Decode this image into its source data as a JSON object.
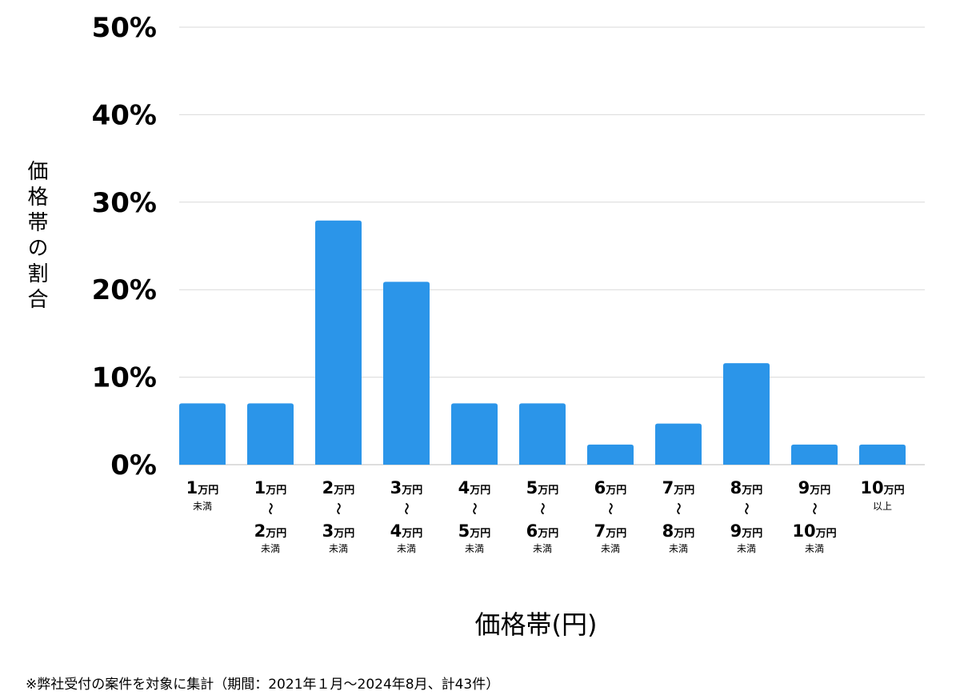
{
  "chart_data": {
    "type": "bar",
    "xlabel": "価格帯(円)",
    "ylabel": "価格帯の割合",
    "ylim": [
      0,
      50
    ],
    "yticks": [
      "0%",
      "10%",
      "20%",
      "30%",
      "40%",
      "50%"
    ],
    "grid": true,
    "bar_color": "#2b95e9",
    "categories": [
      {
        "top": "1",
        "top_unit": "万円",
        "note": "未満"
      },
      {
        "top": "1",
        "top_unit": "万円",
        "wave": "〜",
        "bottom": "2",
        "bottom_unit": "万円",
        "note": "未満"
      },
      {
        "top": "2",
        "top_unit": "万円",
        "wave": "〜",
        "bottom": "3",
        "bottom_unit": "万円",
        "note": "未満"
      },
      {
        "top": "3",
        "top_unit": "万円",
        "wave": "〜",
        "bottom": "4",
        "bottom_unit": "万円",
        "note": "未満"
      },
      {
        "top": "4",
        "top_unit": "万円",
        "wave": "〜",
        "bottom": "5",
        "bottom_unit": "万円",
        "note": "未満"
      },
      {
        "top": "5",
        "top_unit": "万円",
        "wave": "〜",
        "bottom": "6",
        "bottom_unit": "万円",
        "note": "未満"
      },
      {
        "top": "6",
        "top_unit": "万円",
        "wave": "〜",
        "bottom": "7",
        "bottom_unit": "万円",
        "note": "未満"
      },
      {
        "top": "7",
        "top_unit": "万円",
        "wave": "〜",
        "bottom": "8",
        "bottom_unit": "万円",
        "note": "未満"
      },
      {
        "top": "8",
        "top_unit": "万円",
        "wave": "〜",
        "bottom": "9",
        "bottom_unit": "万円",
        "note": "未満"
      },
      {
        "top": "9",
        "top_unit": "万円",
        "wave": "〜",
        "bottom": "10",
        "bottom_unit": "万円",
        "note": "未満"
      },
      {
        "top": "10",
        "top_unit": "万円",
        "note": "以上"
      }
    ],
    "values": [
      7.0,
      7.0,
      27.9,
      20.9,
      7.0,
      7.0,
      2.3,
      4.7,
      11.6,
      2.3,
      2.3
    ]
  },
  "footnote": "※弊社受付の案件を対象に集計（期間：2021年１月〜2024年8月、計43件）"
}
